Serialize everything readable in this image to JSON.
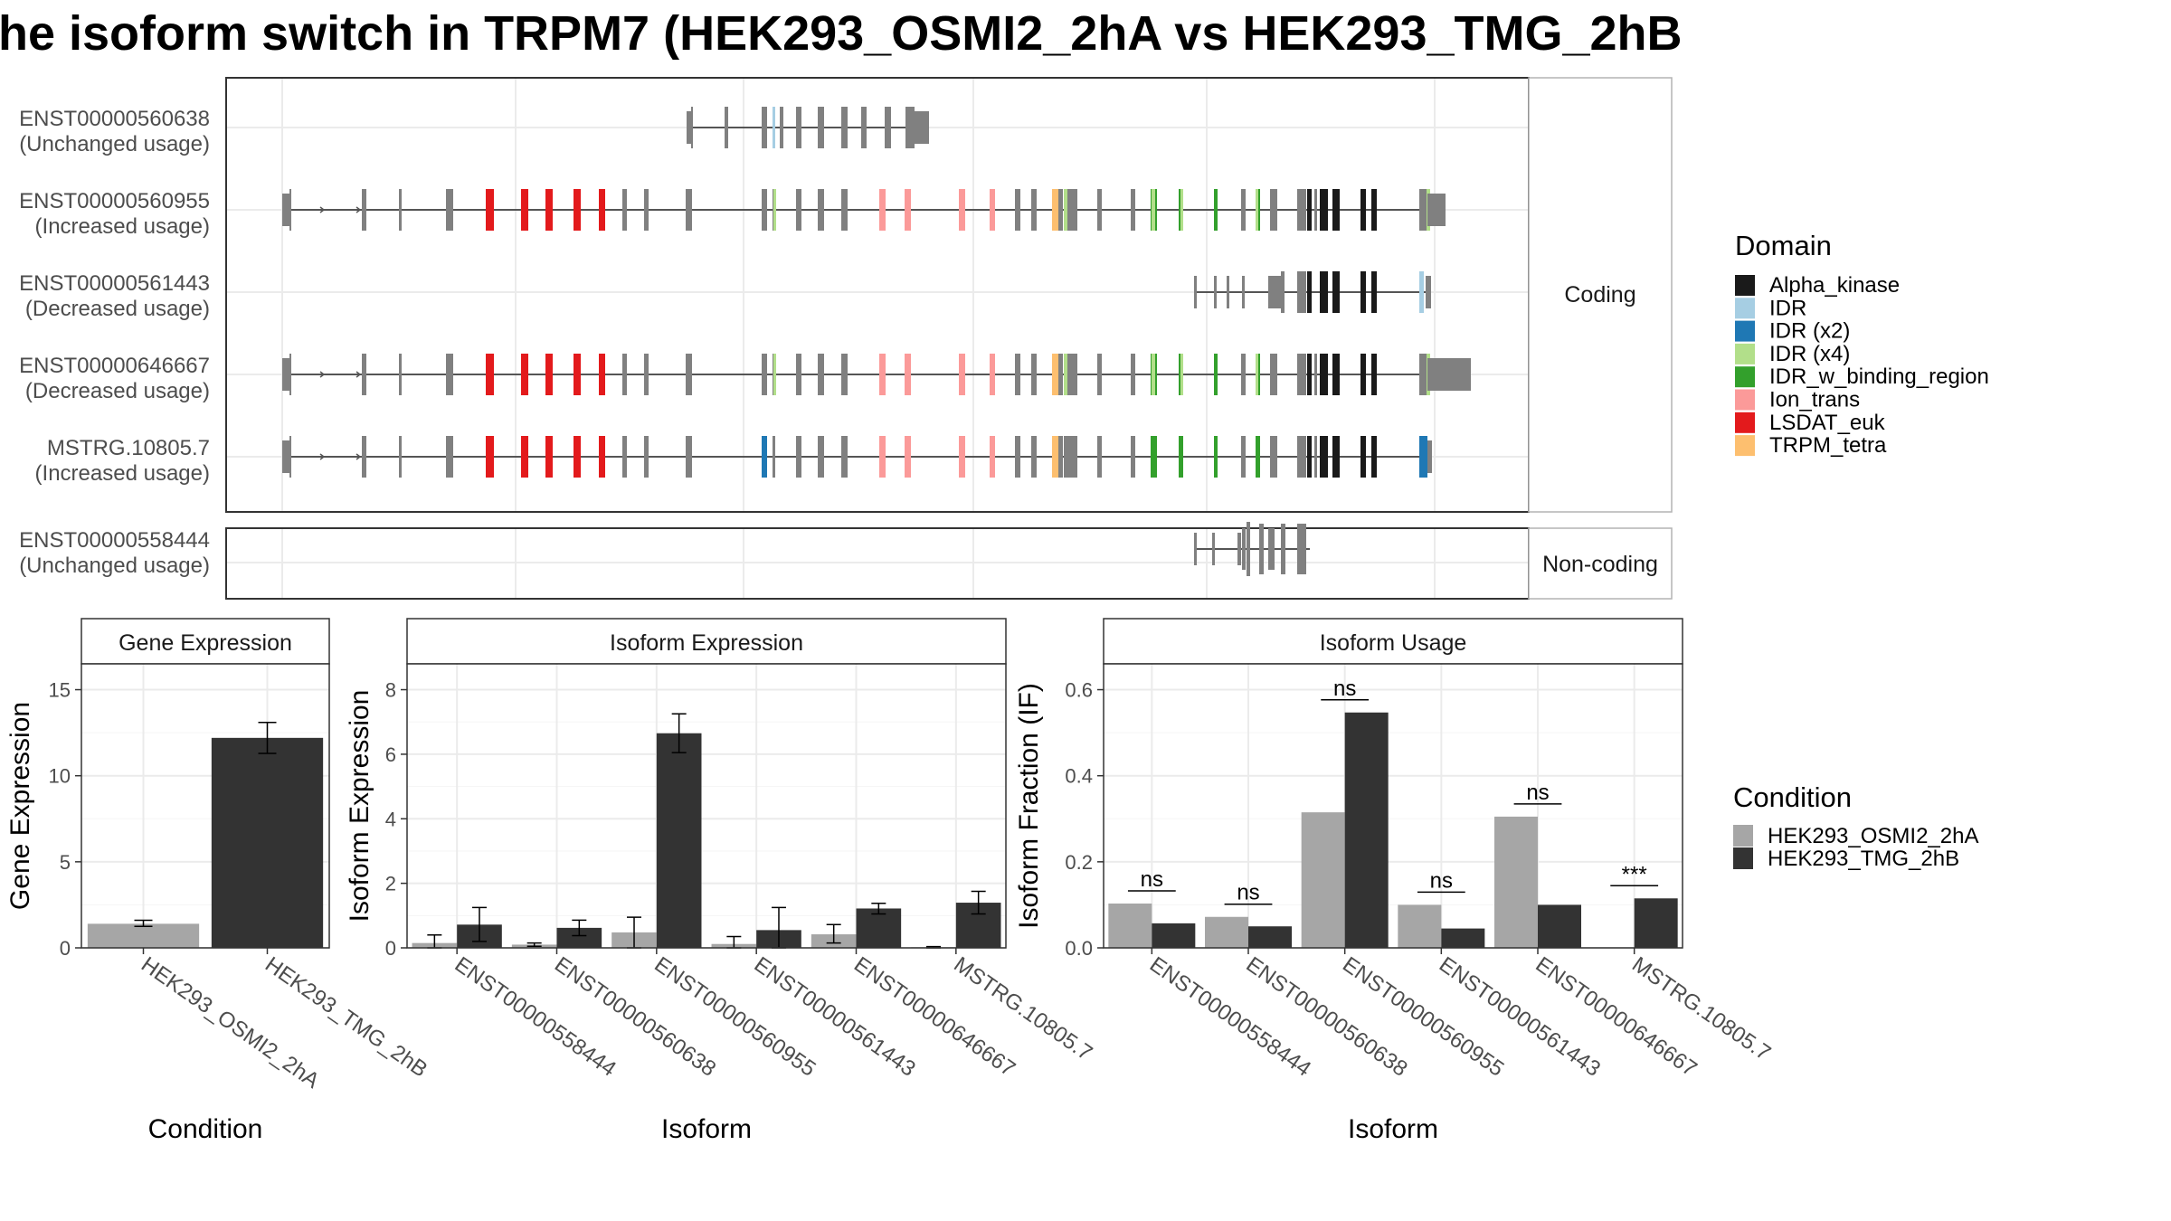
{
  "title": "he isoform switch in TRPM7 (HEK293_OSMI2_2hA vs HEK293_TMG_2hB",
  "colors": {
    "condition_a": "#a6a6a6",
    "condition_b": "#333333",
    "exon": "#808080",
    "Alpha_kinase": "#1a1a1a",
    "IDR": "#a6cee3",
    "IDR (x2)": "#1f78b4",
    "IDR (x4)": "#b2df8a",
    "IDR_w_binding_region": "#33a02c",
    "Ion_trans": "#fb9a99",
    "LSDAT_euk": "#e31a1c",
    "TRPM_tetra": "#fdbf6f"
  },
  "structure": {
    "coding_label": "Coding",
    "noncoding_label": "Non-coding",
    "transcripts": [
      {
        "id": "ENST00000560638",
        "usage": "(Unchanged usage)",
        "group": "coding"
      },
      {
        "id": "ENST00000560955",
        "usage": "(Increased usage)",
        "group": "coding"
      },
      {
        "id": "ENST00000561443",
        "usage": "(Decreased usage)",
        "group": "coding"
      },
      {
        "id": "ENST00000646667",
        "usage": "(Decreased usage)",
        "group": "coding"
      },
      {
        "id": "MSTRG.10805.7",
        "usage": "(Increased usage)",
        "group": "coding"
      },
      {
        "id": "ENST00000558444",
        "usage": "(Unchanged usage)",
        "group": "noncoding"
      }
    ]
  },
  "legend_domain": {
    "title": "Domain",
    "entries": [
      "Alpha_kinase",
      "IDR",
      "IDR (x2)",
      "IDR (x4)",
      "IDR_w_binding_region",
      "Ion_trans",
      "LSDAT_euk",
      "TRPM_tetra"
    ]
  },
  "legend_condition": {
    "title": "Condition",
    "entries": [
      "HEK293_OSMI2_2hA",
      "HEK293_TMG_2hB"
    ]
  },
  "chart_data": [
    {
      "type": "bar",
      "title": "Gene Expression",
      "xlabel": "Condition",
      "ylabel": "Gene Expression",
      "ylim": [
        0,
        16.5
      ],
      "yticks": [
        0,
        5,
        10,
        15
      ],
      "categories": [
        "HEK293_OSMI2_2hA",
        "HEK293_TMG_2hB"
      ],
      "values": [
        1.4,
        12.2
      ],
      "errors": [
        [
          1.25,
          1.6
        ],
        [
          11.3,
          13.1
        ]
      ]
    },
    {
      "type": "bar",
      "title": "Isoform Expression",
      "xlabel": "Isoform",
      "ylabel": "Isoform Expression",
      "ylim": [
        0,
        8.8
      ],
      "yticks": [
        0,
        2,
        4,
        6,
        8
      ],
      "categories": [
        "ENST00000558444",
        "ENST00000560638",
        "ENST00000560955",
        "ENST00000561443",
        "ENST00000646667",
        "MSTRG.10805.7"
      ],
      "series": [
        {
          "name": "HEK293_OSMI2_2hA",
          "values": [
            0.15,
            0.1,
            0.48,
            0.12,
            0.42,
            0.02
          ],
          "errors": [
            [
              0.0,
              0.4
            ],
            [
              0.05,
              0.15
            ],
            [
              0.0,
              0.95
            ],
            [
              0.0,
              0.35
            ],
            [
              0.15,
              0.72
            ],
            [
              0.0,
              0.04
            ]
          ]
        },
        {
          "name": "HEK293_TMG_2hB",
          "values": [
            0.72,
            0.62,
            6.65,
            0.55,
            1.22,
            1.4
          ],
          "errors": [
            [
              0.2,
              1.25
            ],
            [
              0.38,
              0.86
            ],
            [
              6.05,
              7.25
            ],
            [
              0.0,
              1.25
            ],
            [
              1.05,
              1.38
            ],
            [
              1.05,
              1.75
            ]
          ]
        }
      ]
    },
    {
      "type": "bar",
      "title": "Isoform Usage",
      "xlabel": "Isoform",
      "ylabel": "Isoform Fraction (IF)",
      "ylim": [
        0,
        0.66
      ],
      "yticks": [
        0.0,
        0.2,
        0.4,
        0.6
      ],
      "categories": [
        "ENST00000558444",
        "ENST00000560638",
        "ENST00000560955",
        "ENST00000561443",
        "ENST00000646667",
        "MSTRG.10805.7"
      ],
      "series": [
        {
          "name": "HEK293_OSMI2_2hA",
          "values": [
            0.103,
            0.072,
            0.315,
            0.1,
            0.305,
            0.0
          ]
        },
        {
          "name": "HEK293_TMG_2hB",
          "values": [
            0.057,
            0.05,
            0.547,
            0.045,
            0.1,
            0.115
          ]
        }
      ],
      "annotations": [
        "ns",
        "ns",
        "ns",
        "ns",
        "ns",
        "***"
      ]
    }
  ]
}
